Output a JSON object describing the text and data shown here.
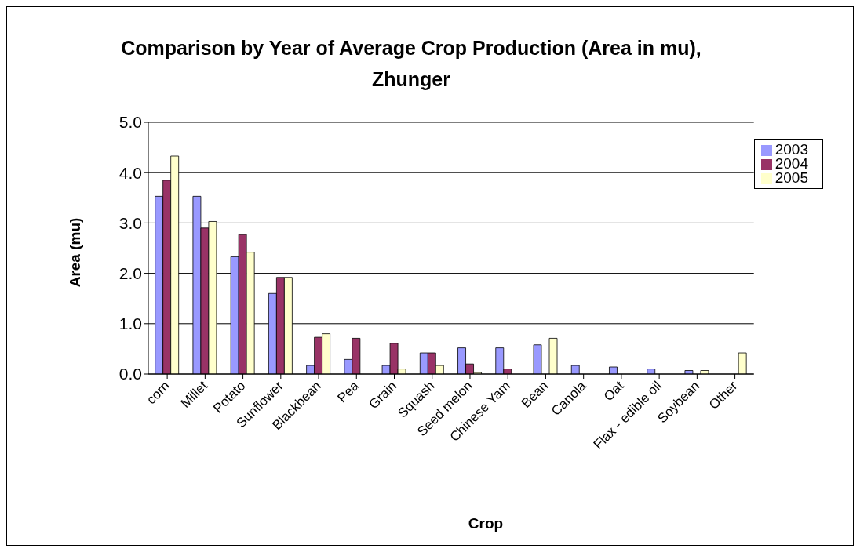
{
  "chart_data": {
    "type": "bar",
    "title": "Comparison by Year of Average Crop Production (Area in mu), Zhunger",
    "xlabel": "Crop",
    "ylabel": "Area (mu)",
    "categories": [
      "corn",
      "Millet",
      "Potato",
      "Sunflower",
      "Blackbean",
      "Pea",
      "Grain",
      "Squash",
      "Seed melon",
      "Chinese Yam",
      "Bean",
      "Canola",
      "Oat",
      "Flax - edible oil",
      "Soybean",
      "Other"
    ],
    "series": [
      {
        "name": "2003",
        "color": "#9999ff",
        "values": [
          3.53,
          3.53,
          2.33,
          1.6,
          0.17,
          0.29,
          0.17,
          0.42,
          0.52,
          0.52,
          0.58,
          0.17,
          0.14,
          0.1,
          0.07,
          null
        ]
      },
      {
        "name": "2004",
        "color": "#993366",
        "values": [
          3.85,
          2.9,
          2.77,
          1.92,
          0.73,
          0.71,
          0.61,
          0.42,
          0.2,
          0.1,
          null,
          null,
          null,
          null,
          null,
          null
        ]
      },
      {
        "name": "2005",
        "color": "#ffffcc",
        "values": [
          4.33,
          3.03,
          2.42,
          1.92,
          0.8,
          null,
          0.1,
          0.17,
          0.03,
          null,
          0.71,
          null,
          null,
          null,
          0.07,
          0.42
        ]
      }
    ],
    "ylim": [
      0,
      5
    ],
    "yticks": [
      {
        "value": 0,
        "label": "0.0"
      },
      {
        "value": 1,
        "label": "1.0"
      },
      {
        "value": 2,
        "label": "2.0"
      },
      {
        "value": 3,
        "label": "3.0"
      },
      {
        "value": 4,
        "label": "4.0"
      },
      {
        "value": 5,
        "label": "5.0"
      }
    ],
    "grid": "y",
    "legend": "top right"
  }
}
